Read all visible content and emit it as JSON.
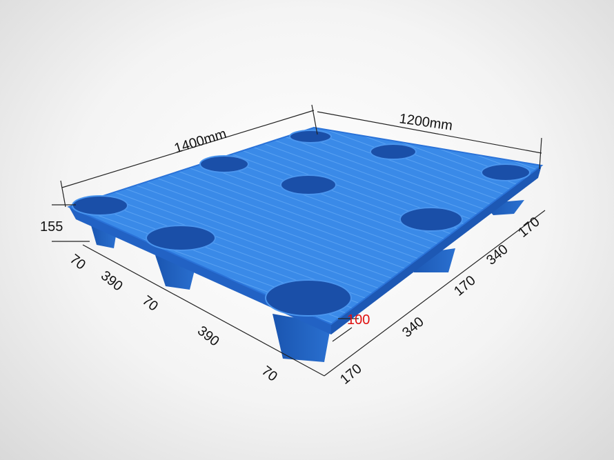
{
  "dimensions": {
    "length": "1400mm",
    "width": "1200mm",
    "height": "155",
    "left_side": [
      "70",
      "390",
      "70",
      "390",
      "70"
    ],
    "right_side": [
      "170",
      "340",
      "170",
      "340",
      "170"
    ],
    "leg_height": "100"
  },
  "colors": {
    "pallet": "#2f7fe0",
    "pallet_dark": "#1d5fc0",
    "dimension_line": "#222222",
    "highlight_label": "#e01010"
  }
}
